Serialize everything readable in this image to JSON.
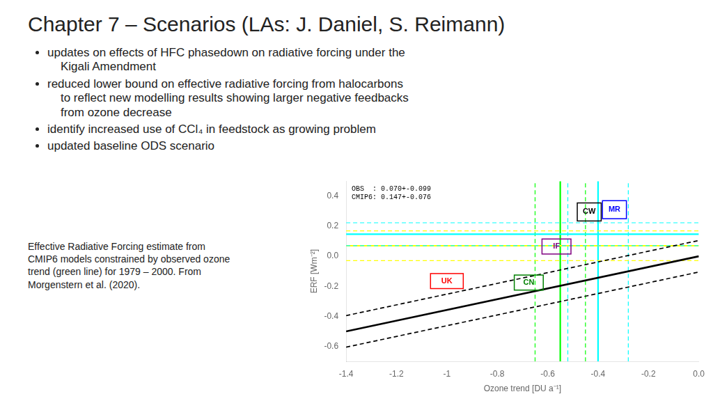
{
  "chart_data": {
    "type": "line",
    "title": "Chapter 7 – Scenarios (LAs: J. Daniel, S. Reimann)",
    "bullet_points": [
      "updates on effects of HFC phasedown on radiative forcing under the\n    Kigali Amendment",
      "reduced lower bound on effective radiative forcing from halocarbons\n    to reflect new modelling results showing larger negative feedbacks\n    from ozone decrease",
      "identify increased use of CCl₄ in feedstock as growing problem",
      "updated baseline ODS scenario"
    ],
    "caption": "Effective Radiative Forcing estimate from\nCMIP6 models constrained by observed ozone\ntrend (green line) for 1979 – 2000. From\nMorgenstern et al. (2020).",
    "annotation": "OBS  : 0.070+-0.099\nCMIP6: 0.147+-0.076",
    "x_label": "Ozone trend [DU a⁻¹]",
    "y_label": "ERF [Wm⁻²]",
    "xlim": [
      -1.4,
      0.0
    ],
    "ylim": [
      -0.7,
      0.5
    ],
    "xticks": [
      -1.4,
      -1.2,
      -1.0,
      -0.8,
      -0.6,
      -0.4,
      -0.2,
      {
        "value": 0,
        "label": "0.0"
      }
    ],
    "yticks": [
      -0.6,
      -0.4,
      -0.2,
      {
        "value": 0,
        "label": "0.0"
      },
      0.2,
      0.4
    ],
    "grid": false,
    "series": [
      {
        "x": [
          -1.4,
          0.0
        ],
        "values": [
          -0.4998,
          0.0
        ],
        "color": "black",
        "line_style": "solid"
      },
      {
        "x": [
          -1.4,
          0.0
        ],
        "values": [
          -0.3948,
          0.105
        ],
        "color": "black",
        "line_style": "dashed"
      },
      {
        "x": [
          -1.4,
          0.0
        ],
        "values": [
          -0.6048,
          -0.105
        ],
        "color": "black",
        "line_style": "dashed"
      }
    ],
    "hlines": [
      {
        "value": 0.147,
        "color": "cyan",
        "line_style": "solid"
      },
      {
        "value": 0.223,
        "color": "cyan",
        "line_style": "dashed"
      },
      {
        "value": 0.071,
        "color": "cyan",
        "line_style": "dashed"
      },
      {
        "value": 0.07,
        "color": "yellow",
        "line_style": "solid"
      },
      {
        "value": 0.169,
        "color": "yellow",
        "line_style": "dashed"
      },
      {
        "value": -0.029,
        "color": "yellow",
        "line_style": "dashed"
      }
    ],
    "vlines": [
      {
        "value": -0.55,
        "color": "lime",
        "line_style": "solid"
      },
      {
        "value": -0.45,
        "color": "lime",
        "line_style": "dashed"
      },
      {
        "value": -0.65,
        "color": "lime",
        "line_style": "dashed"
      },
      {
        "value": -0.4,
        "color": "cyan",
        "line_style": "solid"
      },
      {
        "value": -0.28,
        "color": "cyan",
        "line_style": "dashed"
      },
      {
        "value": -0.52,
        "color": "cyan",
        "line_style": "dashed"
      }
    ],
    "boxes": [
      {
        "label": "CW",
        "color": "black",
        "x": -0.435,
        "y": 0.295,
        "w": 0.095,
        "h": 0.12
      },
      {
        "label": "MR",
        "color": "blue",
        "x": -0.335,
        "y": 0.31,
        "w": 0.095,
        "h": 0.12
      },
      {
        "label": "UK",
        "color": "red",
        "x": -1.0,
        "y": -0.165,
        "w": 0.13,
        "h": 0.1
      },
      {
        "label": "CN",
        "color": "green",
        "x": -0.675,
        "y": -0.175,
        "w": 0.115,
        "h": 0.1
      },
      {
        "label": "IF",
        "color": "purple",
        "x": -0.565,
        "y": 0.065,
        "w": 0.115,
        "h": 0.1
      }
    ]
  }
}
